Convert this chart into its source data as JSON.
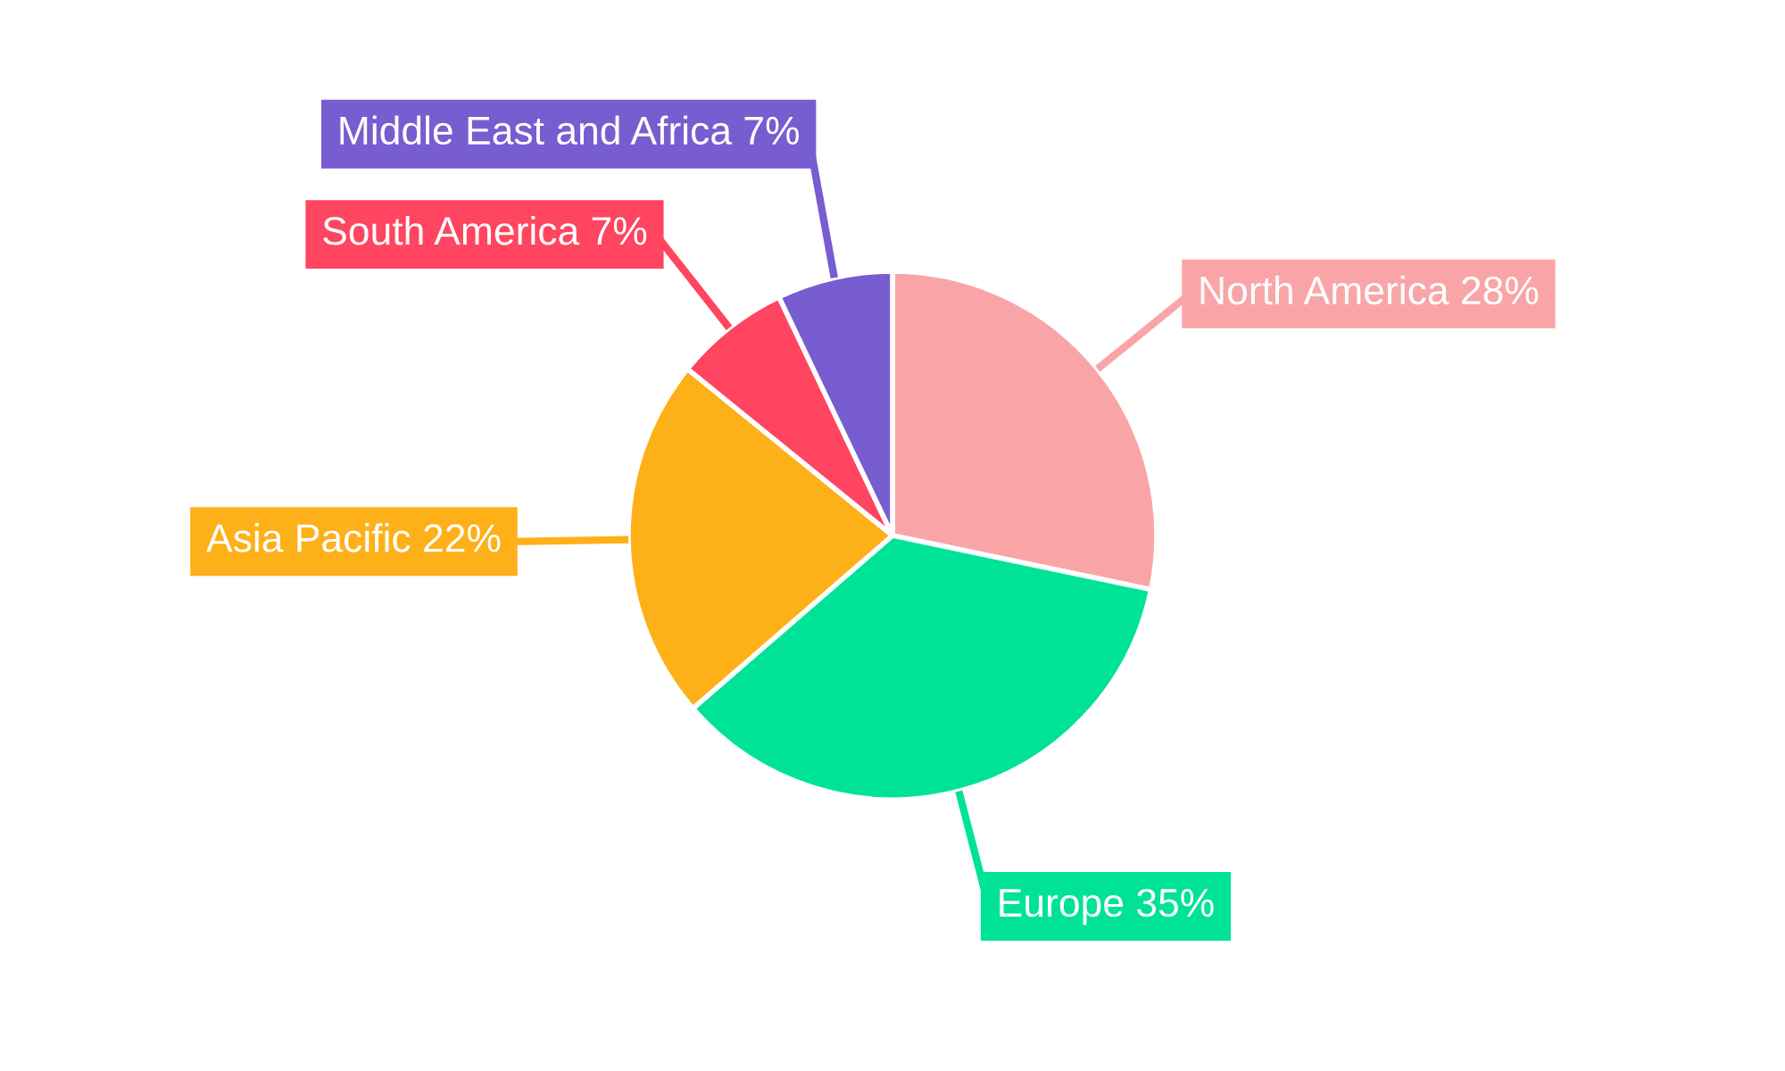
{
  "chart_data": {
    "type": "pie",
    "categories": [
      "North America",
      "Europe",
      "Asia Pacific",
      "South America",
      "Middle East and Africa"
    ],
    "values": [
      28,
      35,
      22,
      7,
      7
    ],
    "colors": [
      "#f9a5a7",
      "#00e396",
      "#feb019",
      "#ff4560",
      "#775dd0"
    ],
    "value_labels": [
      "28%",
      "35%",
      "22%",
      "7%",
      "7%"
    ]
  }
}
